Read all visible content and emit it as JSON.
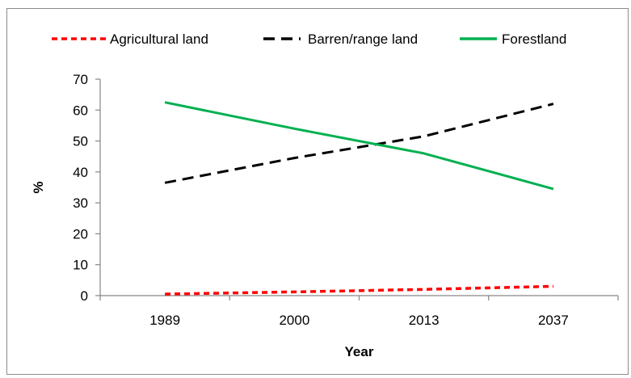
{
  "chart_data": {
    "type": "line",
    "title": "",
    "xlabel": "Year",
    "ylabel": "%",
    "categories": [
      "1989",
      "2000",
      "2013",
      "2037"
    ],
    "ylim": [
      0,
      70
    ],
    "yticks": [
      0,
      10,
      20,
      30,
      40,
      50,
      60,
      70
    ],
    "grid": false,
    "legend_position": "top",
    "series": [
      {
        "name": "Agricultural land",
        "values": [
          0.5,
          1.2,
          2.0,
          3.0
        ],
        "color": "#ff0000",
        "line_style": "dashed"
      },
      {
        "name": "Barren/range land",
        "values": [
          36.5,
          44.5,
          51.5,
          62.0
        ],
        "color": "#000000",
        "line_style": "dashed"
      },
      {
        "name": "Forestland",
        "values": [
          62.5,
          54.0,
          46.0,
          34.5
        ],
        "color": "#00b050",
        "line_style": "solid"
      }
    ]
  }
}
